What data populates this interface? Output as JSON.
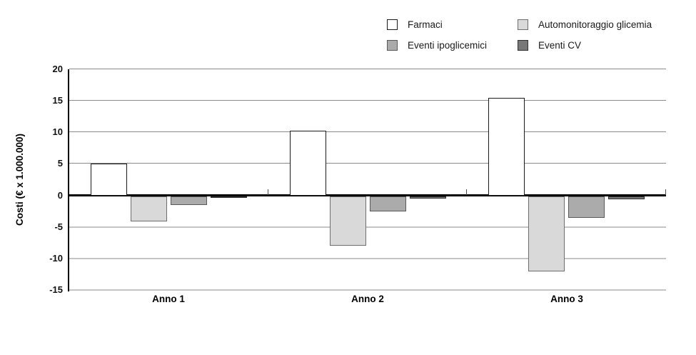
{
  "chart_data": {
    "type": "bar",
    "title": "",
    "categories": [
      "Anno 1",
      "Anno 2",
      "Anno 3"
    ],
    "series": [
      {
        "name": "Farmaci",
        "values": [
          5.0,
          10.3,
          15.5
        ],
        "fill": "#ffffff",
        "border": "#1a1a1a"
      },
      {
        "name": "Automonitoraggio glicemia",
        "values": [
          -4.0,
          -7.9,
          -11.9
        ],
        "fill": "#d9d9d9",
        "border": "#6e6e6e"
      },
      {
        "name": "Eventi ipoglicemici",
        "values": [
          -1.4,
          -2.4,
          -3.4
        ],
        "fill": "#ababab",
        "border": "#595959"
      },
      {
        "name": "Eventi CV",
        "values": [
          -0.2,
          -0.4,
          -0.5
        ],
        "fill": "#787878",
        "border": "#303030"
      }
    ],
    "xlabel": "",
    "ylabel": "Costi (€ x 1.000.000)",
    "ylim": [
      -15,
      20
    ],
    "yticks": [
      20,
      15,
      10,
      5,
      0,
      -5,
      -10,
      -15
    ],
    "grid": true,
    "legend_position": "top-right",
    "legend_layout": [
      [
        "Farmaci",
        "Automonitoraggio glicemia"
      ],
      [
        "Eventi ipoglicemici",
        "Eventi CV"
      ]
    ]
  },
  "colors": {
    "background": "#ffffff",
    "axis": "#000000",
    "grid_positive": "#8a8a8a",
    "grid_negative": "#c4c4c4"
  }
}
